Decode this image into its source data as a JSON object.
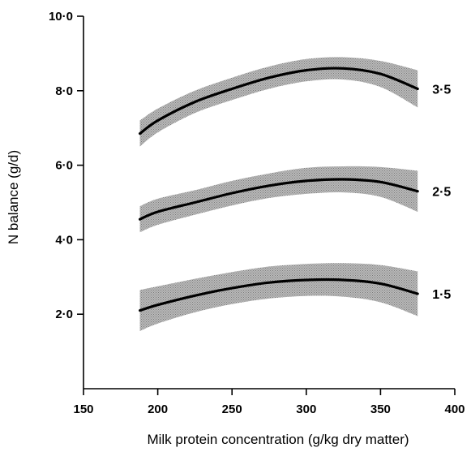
{
  "chart_data": {
    "type": "line",
    "title": "",
    "xlabel": "Milk protein concentration (g/kg dry matter)",
    "ylabel": "N balance (g/d)",
    "xlim": [
      150,
      400
    ],
    "ylim": [
      0,
      10
    ],
    "x_ticks": [
      150,
      200,
      250,
      300,
      350,
      400
    ],
    "x_tick_labels": [
      "150",
      "200",
      "250",
      "300",
      "350",
      "400"
    ],
    "y_ticks": [
      2,
      4,
      6,
      8,
      10
    ],
    "y_tick_labels": [
      "2·0",
      "4·0",
      "6·0",
      "8·0",
      "10·0"
    ],
    "grid": false,
    "band_color": "#b9b9b9",
    "line_color": "#000000",
    "x": [
      188,
      200,
      225,
      250,
      275,
      300,
      325,
      350,
      375
    ],
    "series": [
      {
        "name": "3·5",
        "values": [
          6.85,
          7.2,
          7.7,
          8.05,
          8.35,
          8.55,
          8.6,
          8.45,
          8.05
        ],
        "band_halfwidth": [
          0.35,
          0.32,
          0.3,
          0.3,
          0.3,
          0.3,
          0.3,
          0.35,
          0.5
        ]
      },
      {
        "name": "2·5",
        "values": [
          4.55,
          4.75,
          5.0,
          5.25,
          5.45,
          5.58,
          5.62,
          5.55,
          5.3
        ],
        "band_halfwidth": [
          0.35,
          0.35,
          0.33,
          0.33,
          0.33,
          0.35,
          0.35,
          0.4,
          0.55
        ]
      },
      {
        "name": "1·5",
        "values": [
          2.1,
          2.25,
          2.5,
          2.7,
          2.85,
          2.92,
          2.92,
          2.82,
          2.55
        ],
        "band_halfwidth": [
          0.55,
          0.5,
          0.45,
          0.43,
          0.43,
          0.43,
          0.45,
          0.5,
          0.6
        ]
      }
    ]
  }
}
